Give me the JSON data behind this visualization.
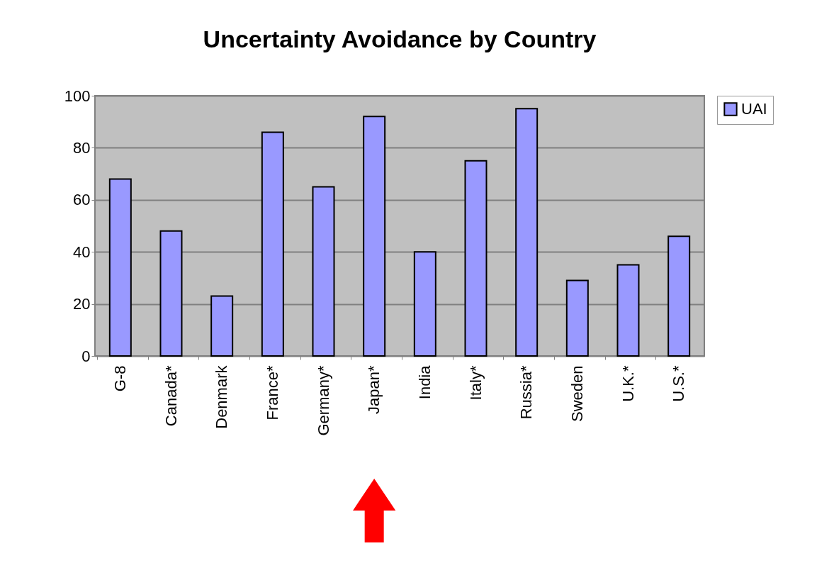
{
  "chart_data": {
    "type": "bar",
    "title": "Uncertainty Avoidance by Country",
    "categories": [
      "G-8",
      "Canada*",
      "Denmark",
      "France*",
      "Germany*",
      "Japan*",
      "India",
      "Italy*",
      "Russia*",
      "Sweden",
      "U.K.*",
      "U.S.*"
    ],
    "series": [
      {
        "name": "UAI",
        "color": "#9999ff",
        "values": [
          68,
          48,
          23,
          86,
          65,
          92,
          40,
          75,
          95,
          29,
          35,
          46
        ]
      }
    ],
    "ylim": [
      0,
      100
    ],
    "yticks": [
      0,
      20,
      40,
      60,
      80,
      100
    ],
    "grid": "y",
    "legend": "right"
  }
}
